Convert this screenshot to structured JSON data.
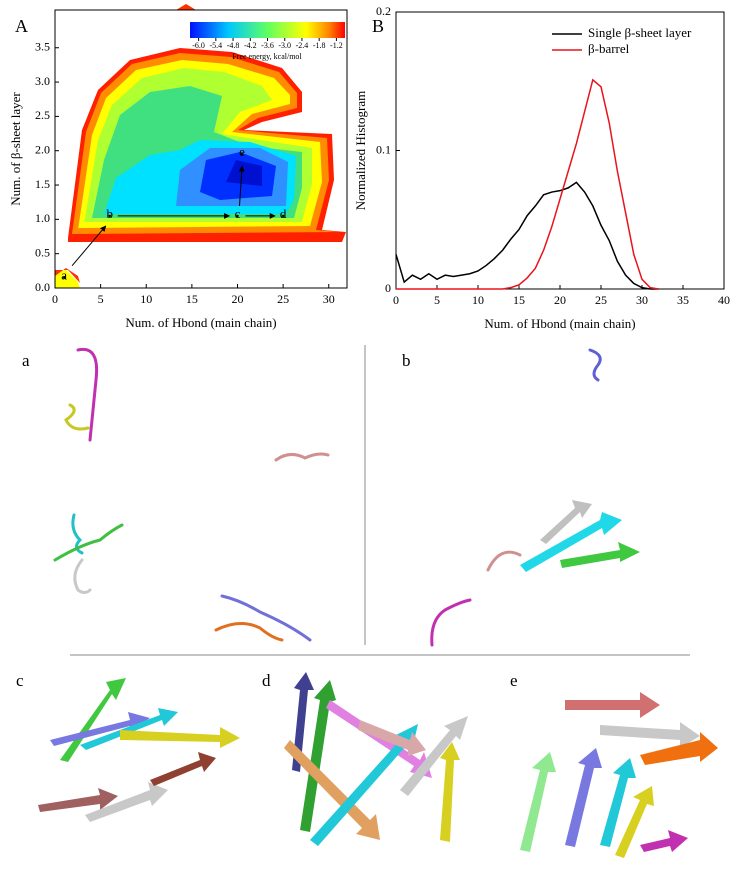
{
  "chart_data": [
    {
      "type": "contour",
      "panel_label": "A",
      "xlabel": "Num. of Hbond (main chain)",
      "ylabel": "Num. of β-sheet layer",
      "xlim": [
        0,
        32
      ],
      "xticks": [
        0,
        5,
        10,
        15,
        20,
        25,
        30
      ],
      "ylim": [
        0,
        4.05
      ],
      "yticks": [
        {
          "value": 0,
          "label": "0.0"
        },
        0.5,
        {
          "value": 1,
          "label": "1.0"
        },
        1.5,
        {
          "value": 2,
          "label": "2.0"
        },
        2.5,
        {
          "value": 3,
          "label": "3.0"
        },
        3.5
      ],
      "colorbar_label": "Free energy, kcal/mol",
      "colorbar_lim": [
        -6.3,
        -0.9
      ],
      "colorbar_ticks": [
        {
          "value": -6,
          "label": "-6.0"
        },
        -5.4,
        -4.8,
        -4.2,
        -3.6,
        {
          "value": -3,
          "label": "-3.0"
        },
        -2.4,
        -1.8,
        -1.2
      ],
      "points": [
        {
          "label": "a",
          "x": 1,
          "y": 0.15
        },
        {
          "label": "b",
          "x": 6,
          "y": 1.05
        },
        {
          "label": "c",
          "x": 20,
          "y": 1.05
        },
        {
          "label": "d",
          "x": 25,
          "y": 1.05
        },
        {
          "label": "e",
          "x": 20.5,
          "y": 1.95
        }
      ]
    },
    {
      "type": "line",
      "panel_label": "B",
      "xlabel": "Num. of Hbond (main chain)",
      "ylabel": "Normalized Histogram",
      "xlim": [
        0,
        40
      ],
      "xticks": [
        0,
        5,
        10,
        15,
        20,
        25,
        30,
        35,
        40
      ],
      "ylim": [
        0,
        0.2
      ],
      "yticks": [
        0,
        0.1,
        0.2
      ],
      "legend": "upper right",
      "x": [
        0,
        1,
        2,
        3,
        4,
        5,
        6,
        7,
        8,
        9,
        10,
        11,
        12,
        13,
        14,
        15,
        16,
        17,
        18,
        19,
        20,
        21,
        22,
        23,
        24,
        25,
        26,
        27,
        28,
        29,
        30,
        31,
        32
      ],
      "series": [
        {
          "name": "Single β-sheet layer",
          "color": "#000000",
          "values": [
            0.025,
            0.005,
            0.01,
            0.007,
            0.011,
            0.007,
            0.01,
            0.009,
            0.01,
            0.011,
            0.013,
            0.017,
            0.022,
            0.028,
            0.036,
            0.043,
            0.053,
            0.06,
            0.068,
            0.07,
            0.071,
            0.073,
            0.077,
            0.07,
            0.06,
            0.046,
            0.035,
            0.02,
            0.01,
            0.004,
            0.001,
            0,
            0
          ]
        },
        {
          "name": "β-barrel",
          "color": "#e8141c",
          "values": [
            0,
            0,
            0,
            0,
            0,
            0,
            0,
            0,
            0,
            0,
            0,
            0,
            0,
            0,
            0.001,
            0.003,
            0.008,
            0.015,
            0.028,
            0.045,
            0.065,
            0.085,
            0.105,
            0.128,
            0.151,
            0.146,
            0.12,
            0.085,
            0.055,
            0.025,
            0.007,
            0.001,
            0
          ]
        }
      ]
    }
  ],
  "structure_panels": [
    {
      "label": "a"
    },
    {
      "label": "b"
    },
    {
      "label": "c"
    },
    {
      "label": "d"
    },
    {
      "label": "e"
    }
  ]
}
